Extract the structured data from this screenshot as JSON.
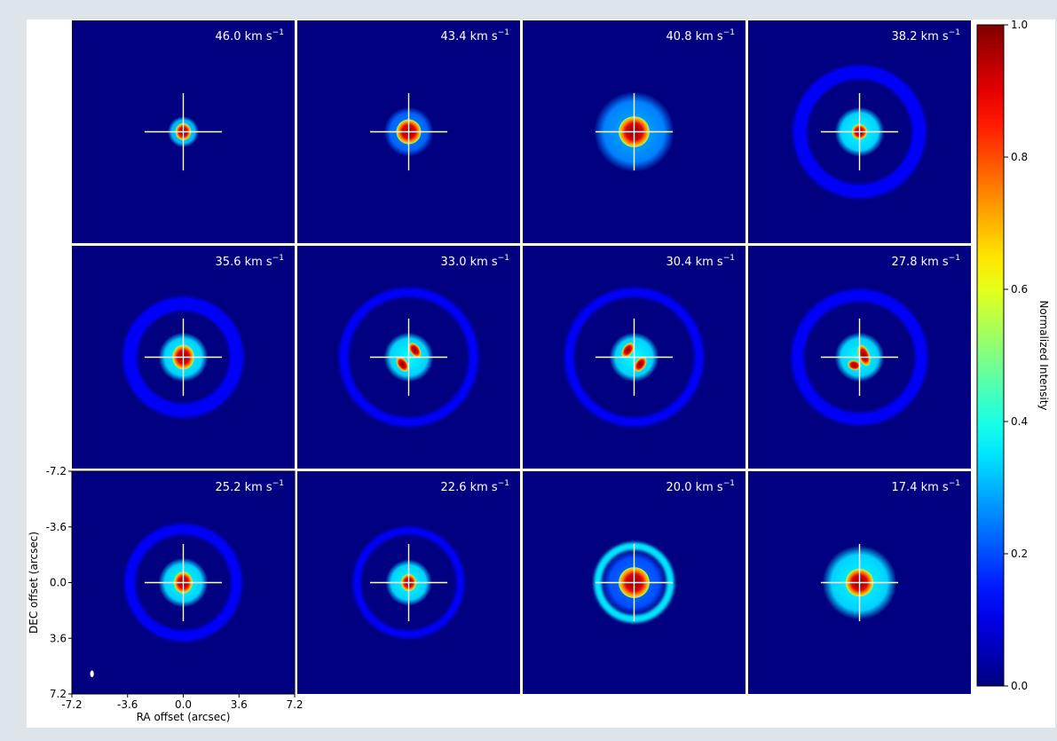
{
  "chart_data": {
    "type": "heatmap",
    "panels": [
      {
        "velocity": "46.0",
        "core": {
          "rx": 0.5,
          "ry": 0.55,
          "peak": 1.0,
          "shape": "blob"
        },
        "halo": {
          "r": 1.0,
          "value": 0.3
        }
      },
      {
        "velocity": "43.4",
        "core": {
          "rx": 0.8,
          "ry": 0.8,
          "peak": 1.0,
          "shape": "blob"
        },
        "halo": {
          "r": 1.6,
          "value": 0.22
        }
      },
      {
        "velocity": "40.8",
        "core": {
          "rx": 1.0,
          "ry": 1.0,
          "peak": 1.0,
          "shape": "blob"
        },
        "halo": {
          "r": 2.6,
          "value": 0.25
        }
      },
      {
        "velocity": "38.2",
        "core": {
          "rx": 0.5,
          "ry": 0.5,
          "peak": 1.0,
          "shape": "blob"
        },
        "halo": {
          "r": 1.6,
          "value": 0.33
        },
        "ring": {
          "inner": 3.4,
          "outer": 4.3,
          "value": 0.12
        }
      },
      {
        "velocity": "35.6",
        "core": {
          "rx": 0.7,
          "ry": 0.8,
          "peak": 1.0,
          "shape": "blob"
        },
        "halo": {
          "r": 1.6,
          "value": 0.33
        },
        "ring": {
          "inner": 3.0,
          "outer": 3.9,
          "value": 0.12
        }
      },
      {
        "velocity": "33.0",
        "core": {
          "rx": 0.4,
          "ry": 0.7,
          "peak": 1.0,
          "shape": "pair"
        },
        "halo": {
          "r": 1.6,
          "value": 0.33
        },
        "ring": {
          "inner": 3.9,
          "outer": 4.5,
          "value": 0.12
        }
      },
      {
        "velocity": "30.4",
        "core": {
          "rx": 0.4,
          "ry": 0.7,
          "peak": 1.0,
          "shape": "pair-r"
        },
        "halo": {
          "r": 1.6,
          "value": 0.33
        },
        "ring": {
          "inner": 3.9,
          "outer": 4.5,
          "value": 0.12
        }
      },
      {
        "velocity": "27.8",
        "core": {
          "rx": 0.6,
          "ry": 0.7,
          "peak": 1.0,
          "shape": "v"
        },
        "halo": {
          "r": 1.6,
          "value": 0.33
        },
        "ring": {
          "inner": 3.6,
          "outer": 4.4,
          "value": 0.12
        }
      },
      {
        "velocity": "25.2",
        "core": {
          "rx": 0.6,
          "ry": 0.7,
          "peak": 1.0,
          "shape": "blob"
        },
        "halo": {
          "r": 1.6,
          "value": 0.33
        },
        "ring": {
          "inner": 3.1,
          "outer": 3.8,
          "value": 0.12
        }
      },
      {
        "velocity": "22.6",
        "core": {
          "rx": 0.5,
          "ry": 0.55,
          "peak": 1.0,
          "shape": "blob"
        },
        "halo": {
          "r": 1.5,
          "value": 0.33
        },
        "ring": {
          "inner": 3.1,
          "outer": 3.6,
          "value": 0.12
        }
      },
      {
        "velocity": "20.0",
        "core": {
          "rx": 1.0,
          "ry": 1.0,
          "peak": 1.0,
          "shape": "blob"
        },
        "halo": {
          "r": 2.1,
          "value": 0.2
        },
        "ring": {
          "inner": 2.1,
          "outer": 2.6,
          "value": 0.35
        }
      },
      {
        "velocity": "17.4",
        "core": {
          "rx": 0.9,
          "ry": 0.9,
          "peak": 1.0,
          "shape": "blob"
        },
        "halo": {
          "r": 2.4,
          "value": 0.33
        }
      }
    ],
    "velocity_unit": "km s",
    "velocity_unit_exp": "−1",
    "xlabel": "RA offset (arcsec)",
    "ylabel": "DEC offset (arcsec)",
    "xticks": [
      "-7.2",
      "-3.6",
      "0.0",
      "3.6",
      "7.2"
    ],
    "yticks": [
      "-7.2",
      "-3.6",
      "0.0",
      "3.6",
      "7.2"
    ],
    "xlim": [
      -7.2,
      7.2
    ],
    "ylim": [
      -7.2,
      7.2
    ],
    "colorbar": {
      "label": "Normalized Intensity",
      "range": [
        0.0,
        1.0
      ],
      "ticks": [
        "0.0",
        "0.2",
        "0.4",
        "0.6",
        "0.8",
        "1.0"
      ],
      "colormap": "jet"
    },
    "crosshair": {
      "center": [
        0,
        0
      ],
      "half_length": 2.5
    },
    "beam": {
      "x": -5.9,
      "y": 5.9,
      "rx": 0.12,
      "ry": 0.22
    }
  }
}
